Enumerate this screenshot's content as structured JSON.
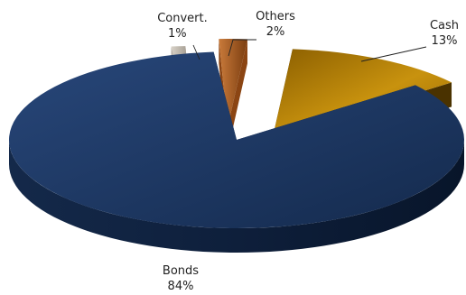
{
  "chart_data": {
    "type": "pie",
    "style": "3d-exploded",
    "slices": [
      {
        "label": "Cash",
        "pct_label": "13%",
        "value": 13,
        "color": "#b8860b"
      },
      {
        "label": "Bonds",
        "pct_label": "84%",
        "value": 84,
        "color": "#1b3257"
      },
      {
        "label": "Convert.",
        "pct_label": "1%",
        "value": 1,
        "color": "#9c9489"
      },
      {
        "label": "Others",
        "pct_label": "2%",
        "value": 2,
        "color": "#a0561f"
      }
    ]
  }
}
